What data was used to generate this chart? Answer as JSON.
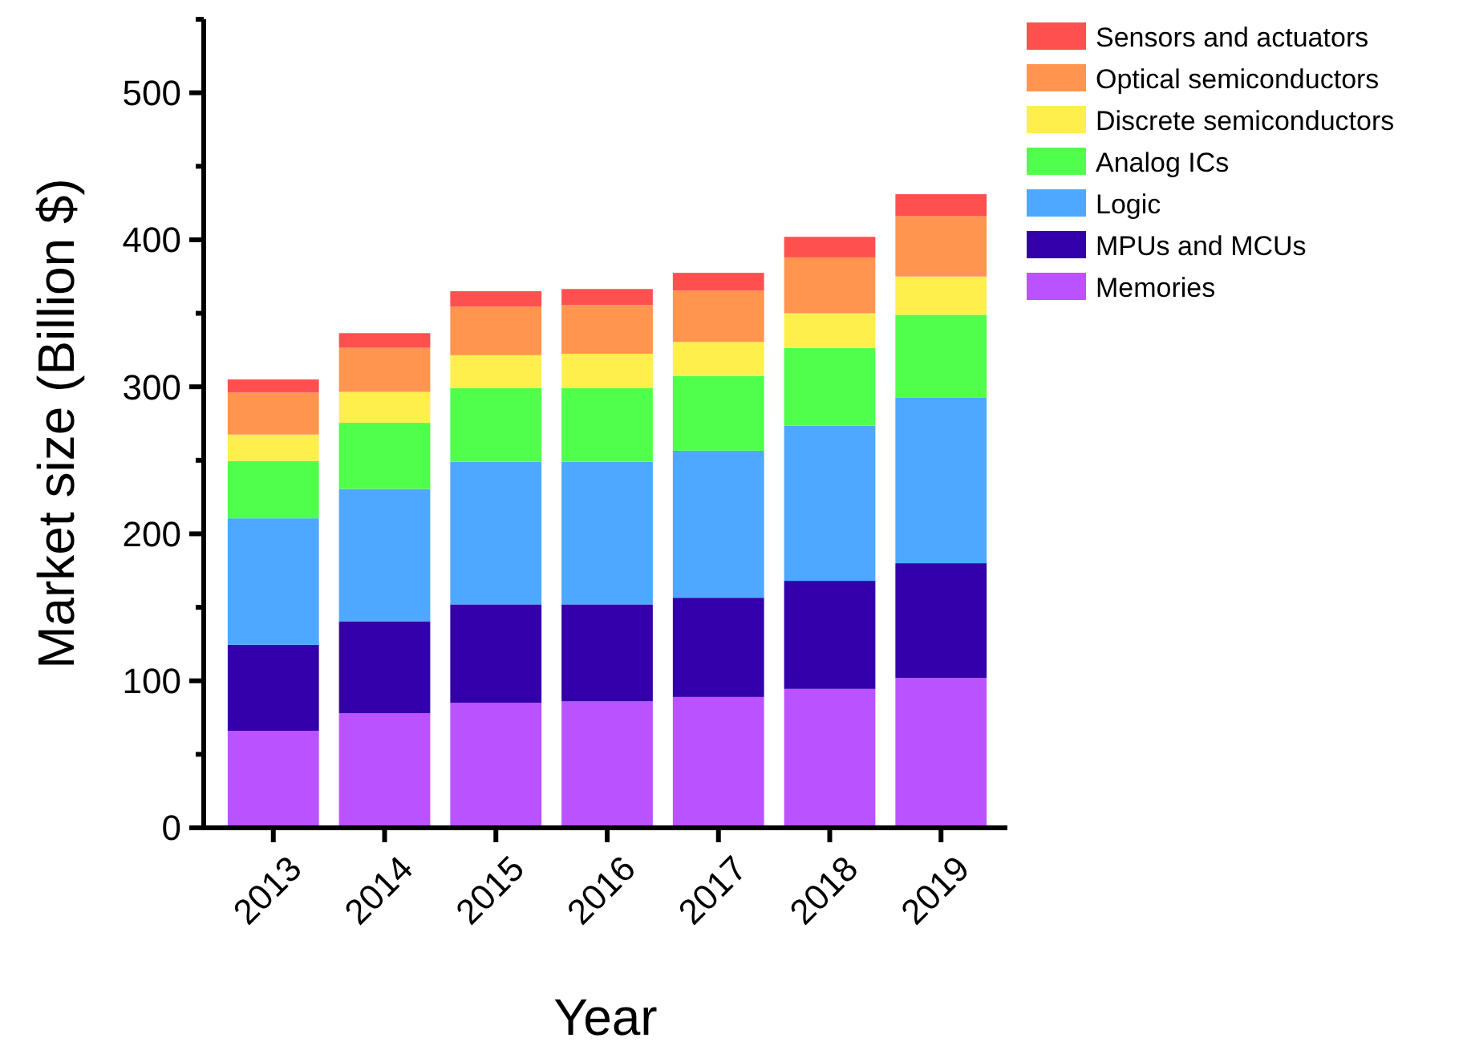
{
  "chart_data": {
    "type": "bar",
    "stacked": true,
    "xlabel": "Year",
    "ylabel": "Market size (Billion $)",
    "categories": [
      "2013",
      "2014",
      "2015",
      "2016",
      "2017",
      "2018",
      "2019"
    ],
    "series": [
      {
        "name": "Memories",
        "color": "#bb52ff",
        "values": [
          66,
          78,
          85,
          86,
          89,
          94.5,
          102
        ]
      },
      {
        "name": "MPUs and MCUs",
        "color": "#3300aa",
        "values": [
          58.5,
          62.5,
          67,
          66,
          67.5,
          73.5,
          78
        ]
      },
      {
        "name": "Logic",
        "color": "#4fa8ff",
        "values": [
          86,
          90,
          97,
          97,
          100,
          105.5,
          112.5
        ]
      },
      {
        "name": "Analog ICs",
        "color": "#50ff4c",
        "values": [
          39,
          45,
          50,
          50,
          51,
          53,
          56.5
        ]
      },
      {
        "name": "Discrete semiconductors",
        "color": "#ffef4c",
        "values": [
          18,
          21,
          22.5,
          23.5,
          23,
          23.5,
          26
        ]
      },
      {
        "name": "Optical semiconductors",
        "color": "#ff954f",
        "values": [
          28.5,
          30,
          33,
          33,
          35,
          38,
          41
        ]
      },
      {
        "name": "Sensors and actuators",
        "color": "#ff5050",
        "values": [
          9,
          10,
          10.5,
          11,
          12,
          14,
          15
        ]
      }
    ],
    "ylim": [
      0,
      550
    ],
    "yticks": [
      0,
      {
        "value": 50,
        "label": null
      },
      100,
      {
        "value": 150,
        "label": null
      },
      200,
      {
        "value": 250,
        "label": null
      },
      300,
      {
        "value": 350,
        "label": null
      },
      400,
      {
        "value": 450,
        "label": null
      },
      500,
      {
        "value": 550,
        "label": null
      }
    ],
    "grid": false,
    "legend": "top right"
  }
}
